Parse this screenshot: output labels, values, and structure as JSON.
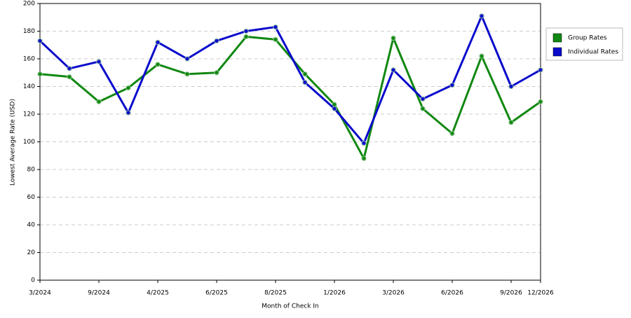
{
  "chart_data": {
    "type": "line",
    "x_label": "Month of Check In",
    "y_label": "Lowest Average Rate (USD)",
    "categories": [
      "3/2024",
      null,
      "9/2024",
      null,
      "4/2025",
      null,
      "6/2025",
      null,
      "8/2025",
      null,
      "1/2026",
      null,
      "3/2026",
      null,
      "6/2026",
      null,
      "9/2026",
      "12/2026"
    ],
    "series": [
      {
        "name": "Group Rates",
        "color": "#118811",
        "values": [
          149,
          147,
          129,
          139,
          156,
          149,
          150,
          176,
          174,
          149,
          127,
          88,
          175,
          124,
          106,
          162,
          114,
          129
        ]
      },
      {
        "name": "Individual Rates",
        "color": "#0a0acc",
        "values": [
          173,
          153,
          158,
          121,
          172,
          160,
          173,
          180,
          183,
          143,
          124,
          99,
          152,
          131,
          141,
          191,
          140,
          152
        ]
      }
    ],
    "ylim": [
      0,
      200
    ],
    "yticks": [
      0,
      20,
      40,
      60,
      80,
      100,
      120,
      140,
      160,
      180,
      200
    ],
    "grid": true,
    "legend": "right"
  }
}
